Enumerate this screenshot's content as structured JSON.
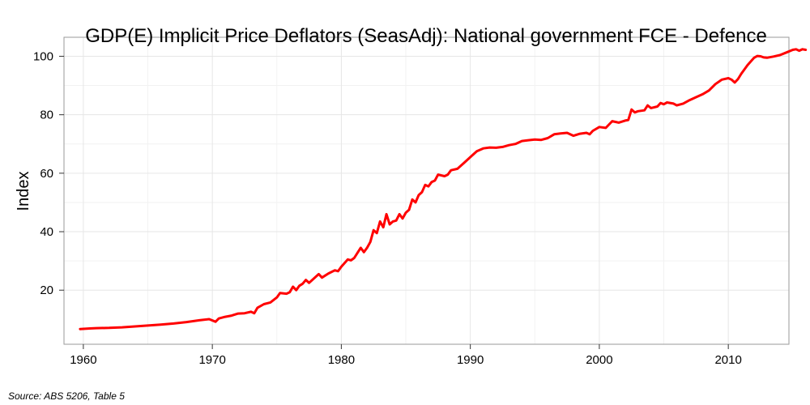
{
  "chart_data": {
    "type": "line",
    "title": "GDP(E) Implicit Price Deflators (SeasAdj): National government FCE - Defence",
    "xlabel": "",
    "ylabel": "Index",
    "xlim": [
      1958.5,
      2014.7
    ],
    "ylim": [
      1.5,
      106.5
    ],
    "xticks": [
      1960,
      1970,
      1980,
      1990,
      2000,
      2010
    ],
    "yticks": [
      20,
      40,
      60,
      80,
      100
    ],
    "grid": true,
    "series": [
      {
        "name": "National government FCE - Defence",
        "color": "#ff0000",
        "points": [
          [
            1959.75,
            6.7
          ],
          [
            1960.5,
            6.9
          ],
          [
            1961.0,
            7.0
          ],
          [
            1962.0,
            7.1
          ],
          [
            1963.0,
            7.3
          ],
          [
            1964.0,
            7.6
          ],
          [
            1965.0,
            7.9
          ],
          [
            1966.0,
            8.2
          ],
          [
            1967.0,
            8.6
          ],
          [
            1968.0,
            9.1
          ],
          [
            1969.0,
            9.7
          ],
          [
            1969.75,
            10.1
          ],
          [
            1970.25,
            9.2
          ],
          [
            1970.5,
            10.3
          ],
          [
            1971.0,
            10.9
          ],
          [
            1971.5,
            11.3
          ],
          [
            1972.0,
            12.0
          ],
          [
            1972.5,
            12.1
          ],
          [
            1973.0,
            12.6
          ],
          [
            1973.25,
            12.1
          ],
          [
            1973.5,
            14.0
          ],
          [
            1974.0,
            15.2
          ],
          [
            1974.5,
            15.8
          ],
          [
            1975.0,
            17.5
          ],
          [
            1975.25,
            19.0
          ],
          [
            1975.75,
            18.8
          ],
          [
            1976.0,
            19.3
          ],
          [
            1976.25,
            21.2
          ],
          [
            1976.5,
            20.0
          ],
          [
            1976.75,
            21.5
          ],
          [
            1977.0,
            22.2
          ],
          [
            1977.25,
            23.5
          ],
          [
            1977.5,
            22.5
          ],
          [
            1978.0,
            24.5
          ],
          [
            1978.25,
            25.5
          ],
          [
            1978.5,
            24.3
          ],
          [
            1979.0,
            25.7
          ],
          [
            1979.5,
            26.8
          ],
          [
            1979.75,
            26.5
          ],
          [
            1980.0,
            28.0
          ],
          [
            1980.5,
            30.5
          ],
          [
            1980.75,
            30.2
          ],
          [
            1981.0,
            31.0
          ],
          [
            1981.5,
            34.5
          ],
          [
            1981.75,
            33.0
          ],
          [
            1982.0,
            34.5
          ],
          [
            1982.25,
            36.5
          ],
          [
            1982.5,
            40.5
          ],
          [
            1982.75,
            39.5
          ],
          [
            1983.0,
            43.5
          ],
          [
            1983.25,
            41.5
          ],
          [
            1983.5,
            46.0
          ],
          [
            1983.75,
            42.5
          ],
          [
            1984.0,
            43.5
          ],
          [
            1984.25,
            43.8
          ],
          [
            1984.5,
            46.0
          ],
          [
            1984.75,
            44.5
          ],
          [
            1985.0,
            46.5
          ],
          [
            1985.25,
            47.5
          ],
          [
            1985.5,
            51.0
          ],
          [
            1985.75,
            50.0
          ],
          [
            1986.0,
            52.5
          ],
          [
            1986.25,
            53.5
          ],
          [
            1986.5,
            56.0
          ],
          [
            1986.75,
            55.5
          ],
          [
            1987.0,
            57.0
          ],
          [
            1987.25,
            57.5
          ],
          [
            1987.5,
            59.5
          ],
          [
            1988.0,
            59.0
          ],
          [
            1988.25,
            59.5
          ],
          [
            1988.5,
            61.0
          ],
          [
            1989.0,
            61.5
          ],
          [
            1989.5,
            63.5
          ],
          [
            1990.0,
            65.5
          ],
          [
            1990.5,
            67.5
          ],
          [
            1991.0,
            68.5
          ],
          [
            1991.5,
            68.8
          ],
          [
            1992.0,
            68.7
          ],
          [
            1992.5,
            69.0
          ],
          [
            1993.0,
            69.6
          ],
          [
            1993.5,
            70.0
          ],
          [
            1994.0,
            71.0
          ],
          [
            1994.5,
            71.3
          ],
          [
            1995.0,
            71.5
          ],
          [
            1995.5,
            71.4
          ],
          [
            1996.0,
            72.0
          ],
          [
            1996.5,
            73.3
          ],
          [
            1997.0,
            73.6
          ],
          [
            1997.5,
            73.8
          ],
          [
            1998.0,
            72.8
          ],
          [
            1998.5,
            73.5
          ],
          [
            1999.0,
            73.8
          ],
          [
            1999.25,
            73.3
          ],
          [
            1999.5,
            74.5
          ],
          [
            2000.0,
            75.8
          ],
          [
            2000.5,
            75.5
          ],
          [
            2001.0,
            77.8
          ],
          [
            2001.5,
            77.3
          ],
          [
            2002.0,
            78.0
          ],
          [
            2002.25,
            78.2
          ],
          [
            2002.5,
            81.8
          ],
          [
            2002.75,
            80.8
          ],
          [
            2003.0,
            81.2
          ],
          [
            2003.5,
            81.5
          ],
          [
            2003.75,
            83.2
          ],
          [
            2004.0,
            82.3
          ],
          [
            2004.5,
            82.8
          ],
          [
            2004.75,
            84.0
          ],
          [
            2005.0,
            83.6
          ],
          [
            2005.25,
            84.2
          ],
          [
            2005.75,
            83.8
          ],
          [
            2006.0,
            83.2
          ],
          [
            2006.5,
            83.8
          ],
          [
            2007.0,
            85.0
          ],
          [
            2007.5,
            86.0
          ],
          [
            2008.0,
            87.0
          ],
          [
            2008.5,
            88.3
          ],
          [
            2009.0,
            90.5
          ],
          [
            2009.5,
            92.0
          ],
          [
            2010.0,
            92.5
          ],
          [
            2010.25,
            92.0
          ],
          [
            2010.5,
            91.0
          ],
          [
            2010.75,
            92.2
          ],
          [
            2011.0,
            94.0
          ],
          [
            2011.5,
            97.0
          ],
          [
            2012.0,
            99.5
          ],
          [
            2012.25,
            100.1
          ],
          [
            2012.5,
            100.0
          ],
          [
            2012.75,
            99.6
          ],
          [
            2013.0,
            99.5
          ],
          [
            2013.5,
            99.9
          ],
          [
            2014.0,
            100.4
          ],
          [
            2014.5,
            101.3
          ],
          [
            2015.0,
            102.2
          ],
          [
            2015.25,
            102.4
          ],
          [
            2015.5,
            101.9
          ],
          [
            2015.75,
            102.4
          ],
          [
            2016.0,
            102.2
          ]
        ]
      }
    ]
  },
  "footer": {
    "source": "Source: ABS 5206, Table 5"
  }
}
